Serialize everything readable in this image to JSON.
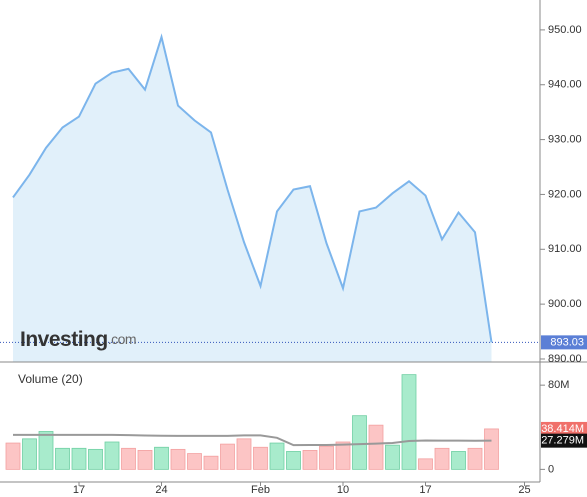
{
  "brand": "Investing",
  "brand_suffix": ".com",
  "chart_data": [
    {
      "type": "area",
      "categories": [
        null,
        null,
        null,
        null,
        "17",
        null,
        null,
        null,
        null,
        "24",
        null,
        null,
        null,
        null,
        null,
        "Feb",
        null,
        null,
        null,
        null,
        "10",
        null,
        null,
        null,
        null,
        "17",
        null,
        null,
        null,
        null,
        null,
        "25"
      ],
      "values": [
        919.45,
        923.6,
        928.5,
        932.2,
        934.2,
        940.2,
        942.2,
        942.9,
        939.1,
        948.7,
        936.2,
        933.5,
        931.3,
        920.9,
        911.3,
        903.3,
        916.9,
        920.9,
        921.5,
        911.1,
        902.9,
        916.9,
        917.6,
        920.2,
        922.4,
        919.8,
        911.8,
        916.7,
        913.1,
        893.03,
        null,
        null
      ],
      "color": "#7cb5ec",
      "fill": "#e1f0fa",
      "badge_color": "#5b7fd6",
      "ylim": [
        889.45,
        955.45
      ],
      "yticks": [
        {
          "value": 890,
          "label": "890.00"
        },
        {
          "value": 900,
          "label": "900.00"
        },
        {
          "value": 910,
          "label": "910.00"
        },
        {
          "value": 920,
          "label": "920.00"
        },
        {
          "value": 930,
          "label": "930.00"
        },
        {
          "value": 940,
          "label": "940.00"
        },
        {
          "value": 950,
          "label": "950.00"
        }
      ]
    },
    {
      "type": "bar",
      "title": "Volume (20)",
      "values": [
        25,
        29,
        36,
        20,
        20,
        19,
        26,
        20,
        18,
        21,
        19,
        15,
        12.5,
        24,
        29,
        21,
        25,
        17,
        18,
        22,
        26,
        51,
        42,
        23,
        90,
        10,
        20,
        17,
        20,
        38.414,
        null,
        null
      ],
      "value_labels": [
        null,
        null,
        null,
        null,
        null,
        null,
        null,
        null,
        null,
        null,
        null,
        null,
        null,
        null,
        null,
        null,
        null,
        null,
        null,
        null,
        null,
        null,
        null,
        null,
        null,
        null,
        null,
        null,
        null,
        "38.414M",
        null,
        null
      ],
      "colors": [
        "#fcc5c5",
        "#a8ebcc",
        "#a8ebcc",
        "#a8ebcc",
        "#a8ebcc",
        "#a8ebcc",
        "#a8ebcc",
        "#fcc5c5",
        "#fcc5c5",
        "#a8ebcc",
        "#fcc5c5",
        "#fcc5c5",
        "#fcc5c5",
        "#fcc5c5",
        "#fcc5c5",
        "#fcc5c5",
        "#a8ebcc",
        "#a8ebcc",
        "#fcc5c5",
        "#fcc5c5",
        "#fcc5c5",
        "#a8ebcc",
        "#fcc5c5",
        "#a8ebcc",
        "#a8ebcc",
        "#fcc5c5",
        "#fcc5c5",
        "#a8ebcc",
        "#fcc5c5",
        "#fcc5c5",
        null,
        null
      ],
      "ma": [
        32.8,
        32.8,
        32.8,
        32.8,
        32.8,
        32.8,
        32.8,
        32.5,
        32.2,
        31.9,
        31.8,
        31.8,
        31.8,
        31.8,
        32.3,
        32.3,
        30,
        23,
        23.1,
        23.1,
        23.5,
        24,
        24.5,
        25,
        27,
        27.4,
        27.3,
        27.3,
        27.2,
        27.279,
        null,
        null
      ],
      "ma_value_labels": [
        null,
        null,
        null,
        null,
        null,
        null,
        null,
        null,
        null,
        null,
        null,
        null,
        null,
        null,
        null,
        null,
        null,
        null,
        null,
        null,
        null,
        null,
        null,
        null,
        null,
        null,
        null,
        null,
        null,
        "27.279M",
        null,
        null
      ],
      "ma_color": "#999999",
      "badge_color": "#f0706a",
      "ma_badge_color": "#111111",
      "ylim": [
        -12,
        102
      ],
      "yticks": [
        0,
        {
          "value": 80,
          "label": "80M"
        }
      ]
    }
  ]
}
